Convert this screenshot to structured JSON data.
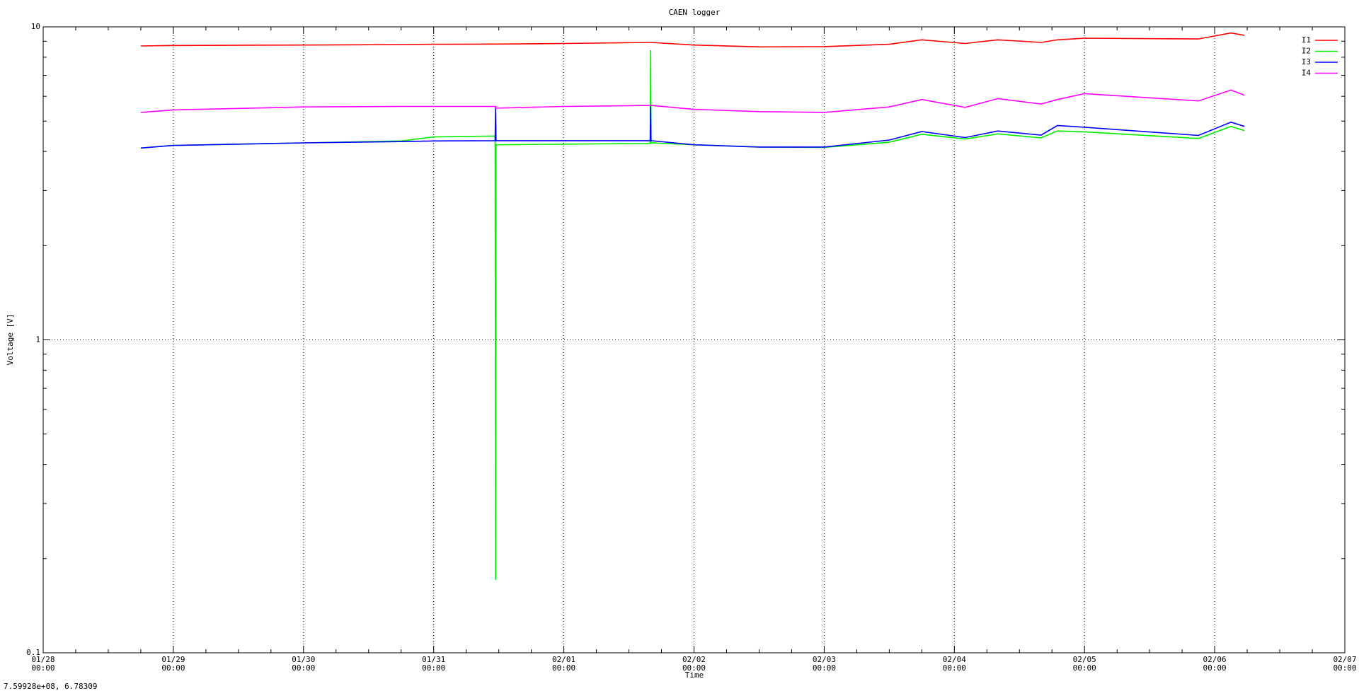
{
  "chart_data": {
    "type": "line",
    "title": "CAEN logger",
    "x_label": "Time",
    "y_label": "Voltage [V]",
    "status_text": "7.59928e+08,  6.78309",
    "log_y": true,
    "grid": true,
    "legend": "top-right",
    "xlim": [
      "01/28\n00:00",
      "02/07\n00:00"
    ],
    "xticks": [
      "01/28\n00:00",
      "01/29\n00:00",
      "01/30\n00:00",
      "01/31\n00:00",
      "02/01\n00:00",
      "02/02\n00:00",
      "02/03\n00:00",
      "02/04\n00:00",
      "02/05\n00:00",
      "02/06\n00:00",
      "02/07\n00:00"
    ],
    "ylim": [
      0.1,
      10
    ],
    "yticks": [
      0.1,
      1,
      10
    ],
    "x": [
      "01/28 18:00",
      "01/29 00:00",
      "01/30 00:00",
      "01/30 18:00",
      "01/31 00:00",
      "01/31 11:20",
      "01/31 11:25",
      "01/31 11:30",
      "02/01 00:00",
      "02/01 15:55",
      "02/01 16:00",
      "02/01 16:05",
      "02/02 00:00",
      "02/02 12:00",
      "02/03 00:00",
      "02/03 12:00",
      "02/03 18:00",
      "02/04 02:00",
      "02/04 08:00",
      "02/04 16:00",
      "02/04 19:00",
      "02/05 00:00",
      "02/05 21:00",
      "02/06 03:00",
      "02/06 05:30"
    ],
    "series": [
      {
        "name": "I1",
        "color": "#ff0000",
        "values": [
          8.69,
          8.72,
          8.75,
          8.78,
          8.8,
          8.81,
          8.81,
          8.81,
          8.85,
          8.92,
          8.92,
          8.92,
          8.75,
          8.63,
          8.65,
          8.8,
          9.09,
          8.85,
          9.09,
          8.92,
          9.09,
          9.2,
          9.15,
          9.56,
          9.4
        ]
      },
      {
        "name": "I2",
        "color": "#00ee00",
        "values": [
          4.1,
          4.18,
          4.26,
          4.32,
          4.45,
          4.48,
          0.171,
          4.2,
          4.22,
          4.24,
          8.42,
          4.26,
          4.2,
          4.13,
          4.12,
          4.28,
          4.54,
          4.38,
          4.55,
          4.42,
          4.65,
          4.62,
          4.4,
          4.81,
          4.66
        ]
      },
      {
        "name": "I3",
        "color": "#0000ff",
        "values": [
          4.1,
          4.18,
          4.26,
          4.3,
          4.32,
          4.33,
          5.57,
          4.33,
          4.33,
          4.33,
          5.57,
          4.33,
          4.2,
          4.13,
          4.13,
          4.35,
          4.63,
          4.43,
          4.65,
          4.51,
          4.84,
          4.78,
          4.5,
          4.96,
          4.81
        ]
      },
      {
        "name": "I4",
        "color": "#ff00ff",
        "values": [
          5.33,
          5.43,
          5.55,
          5.57,
          5.57,
          5.57,
          5.57,
          5.5,
          5.57,
          5.61,
          5.61,
          5.61,
          5.45,
          5.36,
          5.33,
          5.55,
          5.86,
          5.53,
          5.9,
          5.67,
          5.86,
          6.12,
          5.8,
          6.28,
          6.05
        ]
      }
    ]
  }
}
